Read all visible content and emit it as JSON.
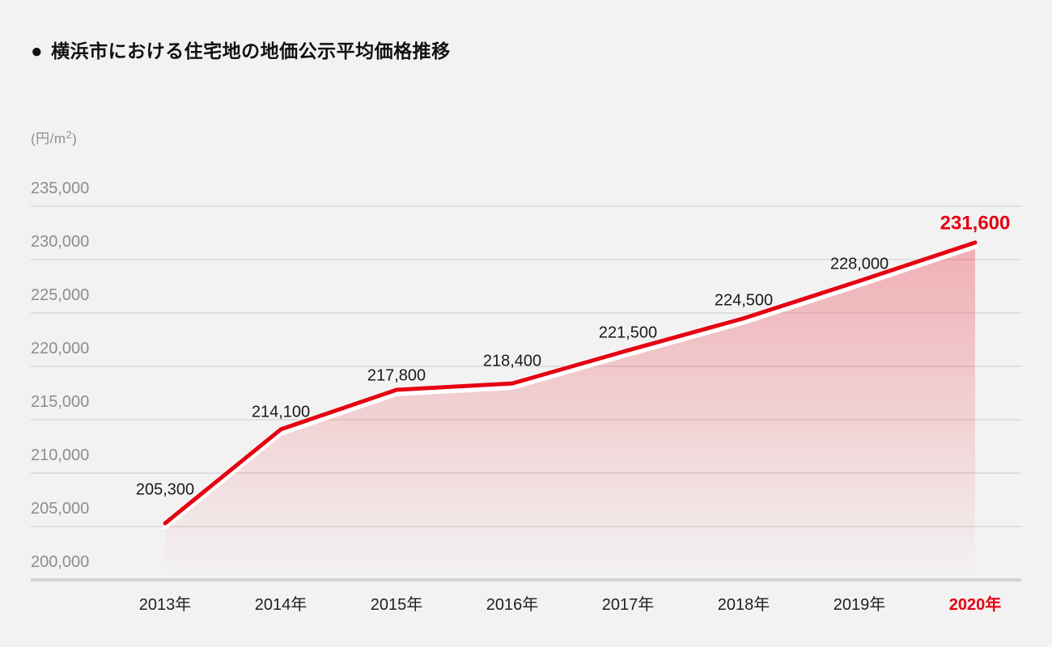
{
  "page": {
    "background": "#f3f2f2"
  },
  "header": {
    "bullet": "●",
    "title": "横浜市における住宅地の地価公示平均価格推移"
  },
  "chart_data": {
    "type": "area",
    "title": "横浜市における住宅地の地価公示平均価格推移",
    "unit": {
      "prefix": "(円/m",
      "sup": "2",
      "suffix": ")"
    },
    "categories": [
      "2013年",
      "2014年",
      "2015年",
      "2016年",
      "2017年",
      "2018年",
      "2019年",
      "2020年"
    ],
    "values": [
      205300,
      214100,
      217800,
      218400,
      221500,
      224500,
      228000,
      231600
    ],
    "value_labels": [
      "205,300",
      "214,100",
      "217,800",
      "218,400",
      "221,500",
      "224,500",
      "228,000",
      "231,600"
    ],
    "yticks": [
      235000,
      230000,
      225000,
      220000,
      215000,
      210000,
      205000,
      200000
    ],
    "ytick_labels": [
      "235,000",
      "230,000",
      "225,000",
      "220,000",
      "215,000",
      "210,000",
      "205,000",
      "200,000"
    ],
    "ylim": [
      200000,
      235000
    ],
    "xlabel": "",
    "ylabel": "(円/m2)",
    "grid": true,
    "legend": "none",
    "highlight_index": 7,
    "colors": {
      "line": "#e60012",
      "line_underlay": "#ffffff",
      "area_fill": "#e60012",
      "highlight_text": "#e60012",
      "label_text": "#1a1a1a",
      "axis_text": "#8f8c8c",
      "gridline": "#e0dedc",
      "axis_line": "#d5d2d0",
      "background": "#f3f2f2"
    }
  }
}
